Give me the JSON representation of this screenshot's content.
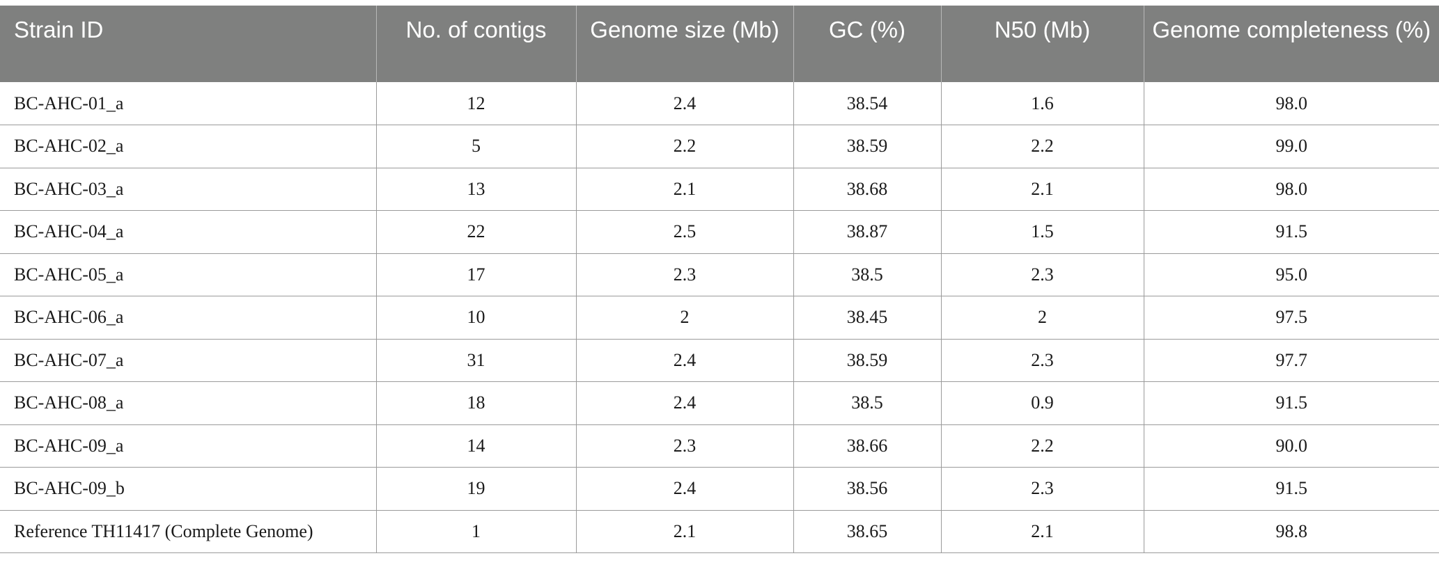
{
  "table": {
    "headers": [
      "Strain ID",
      "No. of contigs",
      "Genome size (Mb)",
      "GC (%)",
      "N50 (Mb)",
      "Genome completeness (%)"
    ],
    "rows": [
      [
        "BC-AHC-01_a",
        "12",
        "2.4",
        "38.54",
        "1.6",
        "98.0"
      ],
      [
        "BC-AHC-02_a",
        "5",
        "2.2",
        "38.59",
        "2.2",
        "99.0"
      ],
      [
        "BC-AHC-03_a",
        "13",
        "2.1",
        "38.68",
        "2.1",
        "98.0"
      ],
      [
        "BC-AHC-04_a",
        "22",
        "2.5",
        "38.87",
        "1.5",
        "91.5"
      ],
      [
        "BC-AHC-05_a",
        "17",
        "2.3",
        "38.5",
        "2.3",
        "95.0"
      ],
      [
        "BC-AHC-06_a",
        "10",
        "2",
        "38.45",
        "2",
        "97.5"
      ],
      [
        "BC-AHC-07_a",
        "31",
        "2.4",
        "38.59",
        "2.3",
        "97.7"
      ],
      [
        "BC-AHC-08_a",
        "18",
        "2.4",
        "38.5",
        "0.9",
        "91.5"
      ],
      [
        "BC-AHC-09_a",
        "14",
        "2.3",
        "38.66",
        "2.2",
        "90.0"
      ],
      [
        "BC-AHC-09_b",
        "19",
        "2.4",
        "38.56",
        "2.3",
        "91.5"
      ],
      [
        "Reference TH11417 (Complete Genome)",
        "1",
        "2.1",
        "38.65",
        "2.1",
        "98.8"
      ]
    ]
  },
  "colors": {
    "header_background": "#7f807f",
    "header_text": "#ffffff",
    "grid_lines": "#9a9a9a"
  }
}
